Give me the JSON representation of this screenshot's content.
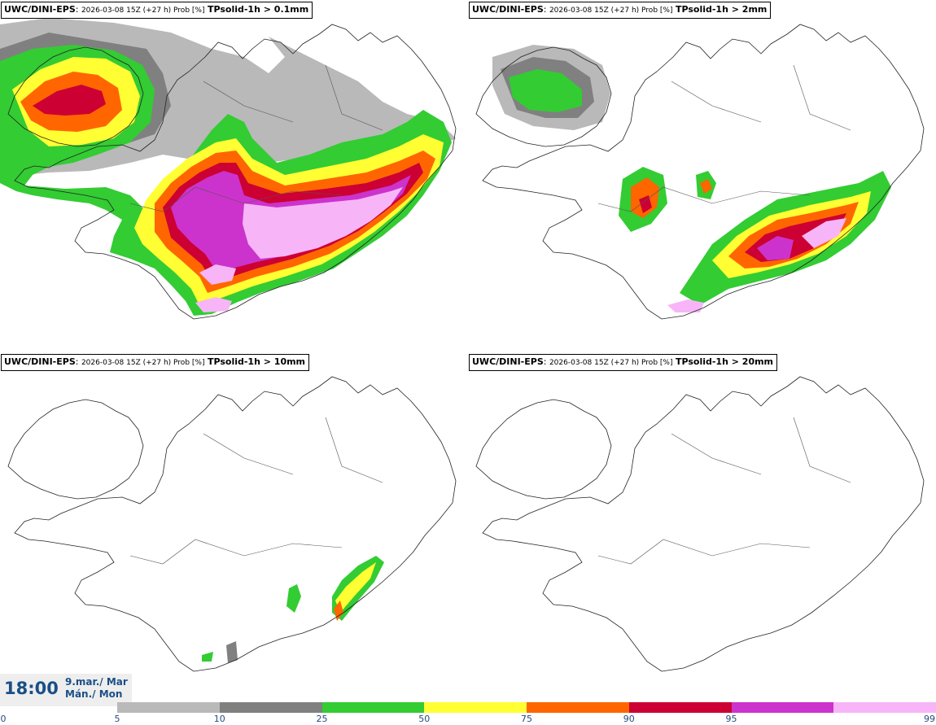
{
  "panels": [
    {
      "model": "UWC/DINI-EPS",
      "meta": "2026-03-08 15Z (+27 h) Prob [%]",
      "param": "TPsolid-1h > 0.1mm"
    },
    {
      "model": "UWC/DINI-EPS",
      "meta": "2026-03-08 15Z (+27 h) Prob [%]",
      "param": "TPsolid-1h > 2mm"
    },
    {
      "model": "UWC/DINI-EPS",
      "meta": "2026-03-08 15Z (+27 h) Prob [%]",
      "param": "TPsolid-1h > 10mm"
    },
    {
      "model": "UWC/DINI-EPS",
      "meta": "2026-03-08 15Z (+27 h) Prob [%]",
      "param": "TPsolid-1h > 20mm"
    }
  ],
  "time": {
    "clock": "18:00",
    "date_line1": "9.mar./ Mar",
    "date_line2": "Mán./ Mon"
  },
  "legend": {
    "ticks": [
      "0",
      "5",
      "10",
      "25",
      "50",
      "75",
      "90",
      "95",
      "99"
    ],
    "colors": [
      "#b9b9b9",
      "#808080",
      "#33cc33",
      "#ffff33",
      "#ff6600",
      "#cc0033",
      "#cc33cc",
      "#f7b5f7"
    ]
  }
}
